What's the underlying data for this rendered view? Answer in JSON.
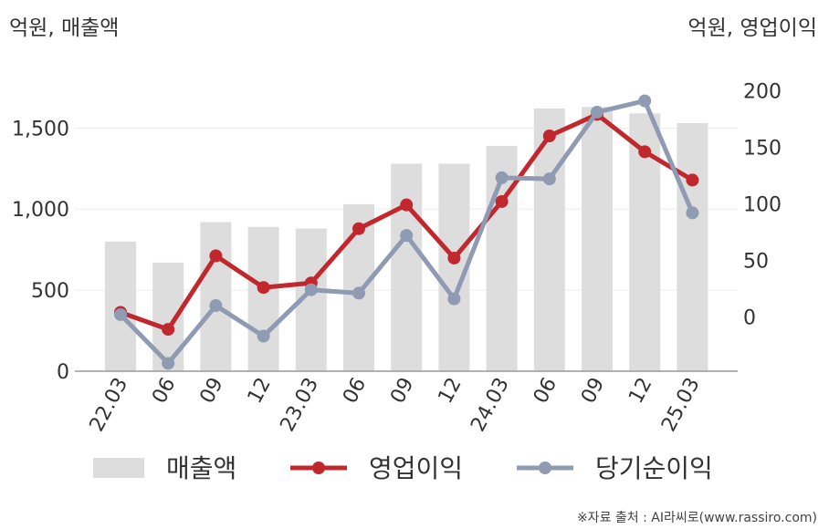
{
  "chart_data": {
    "type": "bar+line",
    "left_axis_label": "억원, 매출액",
    "right_axis_label": "억원, 영업이익",
    "categories": [
      "22.03",
      "06",
      "09",
      "12",
      "23.03",
      "06",
      "09",
      "12",
      "24.03",
      "06",
      "09",
      "12",
      "25.03"
    ],
    "left_ylim": [
      0,
      1800
    ],
    "left_ticks": [
      "0",
      "500",
      "1,000",
      "1,500"
    ],
    "left_tick_values": [
      0,
      500,
      1000,
      1500
    ],
    "right_ylim": [
      -48,
      210
    ],
    "right_ticks": [
      "0",
      "50",
      "100",
      "150",
      "200"
    ],
    "right_tick_values": [
      0,
      50,
      100,
      150,
      200
    ],
    "grid": true,
    "legend_position": "bottom",
    "series": [
      {
        "name": "매출액",
        "type": "bar",
        "axis": "left",
        "color": "#dddddd",
        "values": [
          800,
          670,
          920,
          890,
          880,
          1030,
          1280,
          1280,
          1390,
          1620,
          1630,
          1590,
          1530
        ]
      },
      {
        "name": "영업이익",
        "type": "line",
        "axis": "right",
        "color": "#c0282e",
        "values": [
          4,
          -11,
          54,
          26,
          30,
          78,
          99,
          52,
          102,
          160,
          179,
          146,
          121
        ]
      },
      {
        "name": "당기순이익",
        "type": "line",
        "axis": "right",
        "color": "#8f9ab3",
        "values": [
          2,
          -41,
          10,
          -17,
          24,
          21,
          72,
          16,
          123,
          122,
          181,
          191,
          92
        ]
      }
    ]
  },
  "source": "※자료 출처 : AI라씨로(www.rassiro.com)"
}
